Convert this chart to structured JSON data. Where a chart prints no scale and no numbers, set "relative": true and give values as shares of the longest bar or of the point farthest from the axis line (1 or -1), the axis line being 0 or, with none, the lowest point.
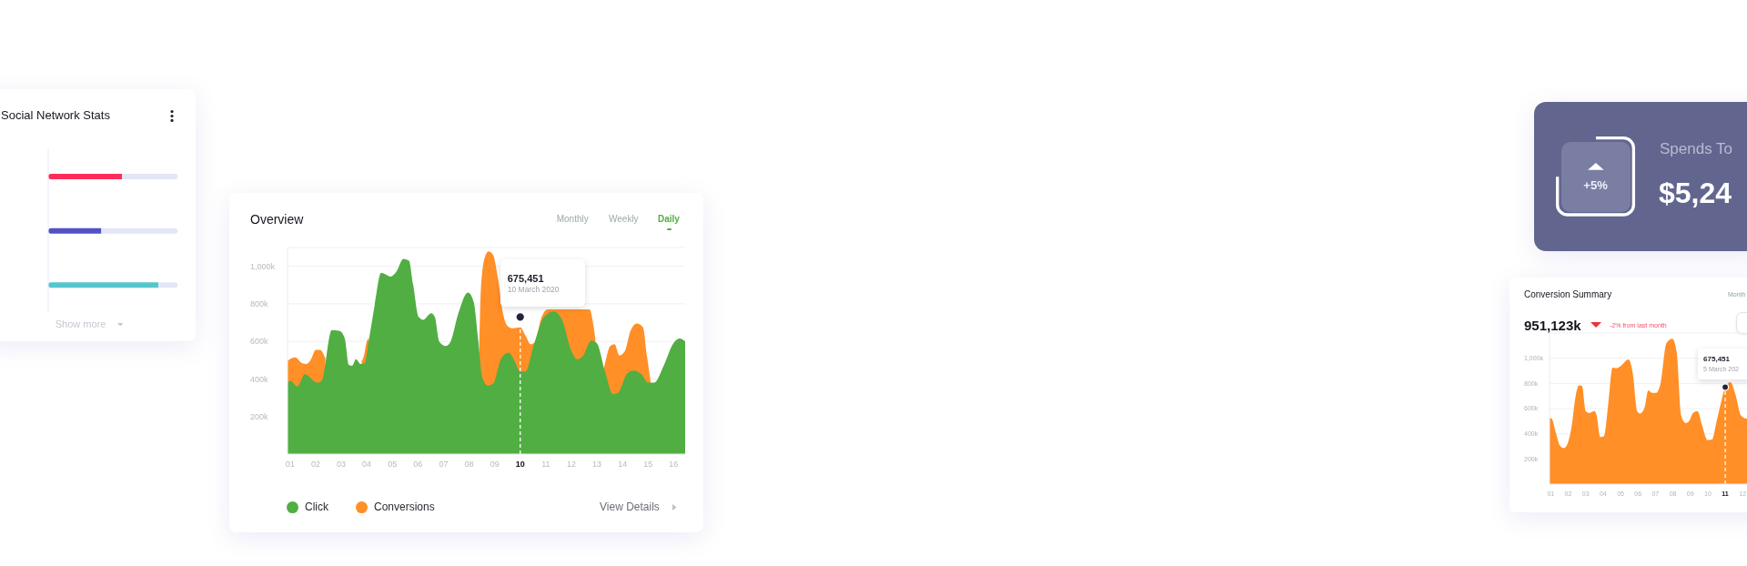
{
  "chart_data": [
    {
      "type": "bar",
      "title": "Social Network Stats",
      "orientation": "horizontal",
      "stacked": true,
      "relative": true,
      "categories": [
        null,
        null,
        null
      ],
      "series": [
        {
          "colors": [
            "#fe2c5a",
            "#5251c6",
            "#56c6cd"
          ],
          "values": [
            0.57,
            0.41,
            0.85
          ]
        },
        {
          "color": "#e3e6f6",
          "values": [
            0.43,
            0.59,
            0.15
          ]
        }
      ],
      "annotations": [
        "Show more"
      ]
    },
    {
      "type": "area",
      "title": "Overview",
      "series": [
        {
          "name": "Click",
          "color": "#51ae42",
          "x": [
            0.9,
            1.0,
            1.29,
            1.58,
            2.06,
            2.23,
            2.63,
            2.94,
            3.14,
            3.3,
            3.42,
            3.58,
            3.75,
            3.92,
            4.09,
            4.31,
            4.56,
            4.76,
            4.93,
            5.15,
            5.43,
            5.65,
            5.81,
            6.03,
            6.2,
            6.52,
            6.66,
            6.83,
            7.09,
            7.28,
            7.57,
            7.96,
            8.18,
            8.35,
            8.52,
            8.74,
            8.94,
            9.26,
            9.55,
            9.78,
            10.0,
            10.21,
            10.54,
            10.93,
            11.31,
            11.62,
            12.0,
            12.22,
            12.44,
            12.78,
            13.0,
            13.31,
            13.63,
            13.81,
            14.19,
            14.43,
            14.74,
            15.01,
            15.24,
            15.61,
            15.99,
            16.24,
            16.45
          ],
          "values": [
            380000,
            390000,
            360000,
            425000,
            380000,
            390000,
            660000,
            655000,
            615000,
            475000,
            470000,
            505000,
            480000,
            485000,
            615000,
            795000,
            965000,
            955000,
            945000,
            970000,
            1040000,
            1030000,
            905000,
            730000,
            715000,
            750000,
            730000,
            600000,
            575000,
            600000,
            745000,
            860000,
            810000,
            615000,
            405000,
            365000,
            375000,
            510000,
            540000,
            495000,
            440000,
            440000,
            585000,
            730000,
            760000,
            720000,
            550000,
            505000,
            520000,
            605000,
            590000,
            445000,
            320000,
            325000,
            430000,
            445000,
            425000,
            380000,
            380000,
            470000,
            590000,
            615000,
            600000
          ]
        },
        {
          "name": "Conversions",
          "color": "#ff8f26",
          "x": [
            0.9,
            1.05,
            1.2,
            1.46,
            1.64,
            1.82,
            2.0,
            2.17,
            2.38,
            2.6,
            3.8,
            3.88,
            4.0,
            4.07,
            4.3,
            8.4,
            8.46,
            8.61,
            8.76,
            8.94,
            9.14,
            9.31,
            9.52,
            9.72,
            10.0,
            10.21,
            10.41,
            10.6,
            10.8,
            11.08,
            12.0,
            12.71,
            12.87,
            12.94,
            13.1,
            13.25,
            13.38,
            13.52,
            13.69,
            13.88,
            14.1,
            14.31,
            14.56,
            14.8,
            14.96,
            15.11
          ],
          "values": [
            495000,
            510000,
            515000,
            485000,
            480000,
            505000,
            555000,
            555000,
            510000,
            null,
            495000,
            520000,
            600000,
            615000,
            null,
            565000,
            875000,
            1045000,
            1080000,
            1060000,
            925000,
            760000,
            680000,
            670000,
            675000,
            630000,
            585000,
            600000,
            715000,
            770000,
            770000,
            770000,
            680000,
            610000,
            null,
            440000,
            520000,
            575000,
            585000,
            525000,
            550000,
            655000,
            695000,
            675000,
            520000,
            375000
          ]
        },
        {
          "type": "scatter",
          "color": "#23253d",
          "marker": "circle",
          "x": [
            10
          ],
          "values": [
            730000
          ]
        }
      ],
      "xlim": [
        0.9,
        16.45
      ],
      "xticks": [
        {
          "value": 1,
          "label": "01"
        },
        {
          "value": 2,
          "label": "02"
        },
        {
          "value": 3,
          "label": "03"
        },
        {
          "value": 4,
          "label": "04"
        },
        {
          "value": 5,
          "label": "05"
        },
        {
          "value": 6,
          "label": "06"
        },
        {
          "value": 7,
          "label": "07"
        },
        {
          "value": 8,
          "label": "08"
        },
        {
          "value": 9,
          "label": "09"
        },
        10,
        11,
        12,
        13,
        14,
        15,
        16
      ],
      "ylim": [
        0,
        1100000
      ],
      "yticks": [
        {
          "value": 200000,
          "label": "200k"
        },
        {
          "value": 400000,
          "label": "400k"
        },
        {
          "value": 600000,
          "label": "600k"
        },
        {
          "value": 800000,
          "label": "800k"
        },
        {
          "value": 1000000,
          "label": "1,000k"
        }
      ],
      "grid": "y",
      "legend": "bottom",
      "ref_lines": [
        {
          "axis": "x",
          "value": 10,
          "color": "#ffffff",
          "line_style": "dashed"
        }
      ],
      "annotations": [
        "675,451",
        "10 March 2020",
        "Monthly",
        "Weekly",
        "Daily",
        "View Details"
      ]
    },
    {
      "type": "other",
      "title": "Spends To",
      "annotations": [
        "$5,24",
        "+5%"
      ]
    },
    {
      "type": "area",
      "title": "Conversion Summary",
      "subtitle": "951,123k",
      "series": [
        {
          "color": "#ff8f26",
          "x": [
            0.93,
            1.05,
            1.31,
            1.53,
            1.74,
            1.91,
            2.18,
            2.44,
            2.61,
            2.79,
            3.0,
            3.22,
            3.5,
            3.63,
            3.83,
            4.05,
            4.3,
            4.54,
            4.75,
            5.03,
            5.45,
            5.7,
            5.95,
            6.12,
            6.37,
            6.59,
            6.8,
            7.05,
            7.3,
            7.63,
            7.97,
            8.22,
            8.47,
            8.73,
            8.9,
            9.16,
            9.41,
            9.67,
            9.98,
            10.25,
            10.5,
            10.79,
            11.0,
            11.29,
            11.59,
            11.9,
            12.2,
            12.3
          ],
          "values": [
            525000,
            520000,
            400000,
            305000,
            285000,
            305000,
            445000,
            710000,
            785000,
            780000,
            580000,
            565000,
            580000,
            545000,
            375000,
            380000,
            640000,
            925000,
            920000,
            940000,
            990000,
            880000,
            580000,
            560000,
            605000,
            745000,
            725000,
            725000,
            805000,
            1120000,
            1155000,
            1045000,
            545000,
            485000,
            495000,
            565000,
            580000,
            470000,
            350000,
            355000,
            495000,
            665000,
            770000,
            810000,
            710000,
            545000,
            520000,
            525000
          ]
        },
        {
          "type": "scatter",
          "color": "#23253d",
          "marker": "circle",
          "x": [
            11
          ],
          "values": [
            770000
          ]
        }
      ],
      "xlim": [
        0.93,
        12.3
      ],
      "xticks": [
        {
          "value": 1,
          "label": "01"
        },
        {
          "value": 2,
          "label": "02"
        },
        {
          "value": 3,
          "label": "03"
        },
        {
          "value": 4,
          "label": "04"
        },
        {
          "value": 5,
          "label": "05"
        },
        {
          "value": 6,
          "label": "06"
        },
        {
          "value": 7,
          "label": "07"
        },
        {
          "value": 8,
          "label": "08"
        },
        {
          "value": 9,
          "label": "09"
        },
        10,
        11,
        12
      ],
      "ylim": [
        0,
        1200000
      ],
      "yticks": [
        {
          "value": 200000,
          "label": "200k"
        },
        {
          "value": 400000,
          "label": "400k"
        },
        {
          "value": 600000,
          "label": "600k"
        },
        {
          "value": 800000,
          "label": "800k"
        },
        {
          "value": 1000000,
          "label": "1,000k"
        }
      ],
      "grid": "y",
      "ref_lines": [
        {
          "axis": "x",
          "value": 11,
          "color": "#ffffff",
          "line_style": "dashed"
        }
      ],
      "annotations": [
        "675,451",
        "5 March 202",
        "-2% from last month",
        "Month"
      ]
    }
  ]
}
